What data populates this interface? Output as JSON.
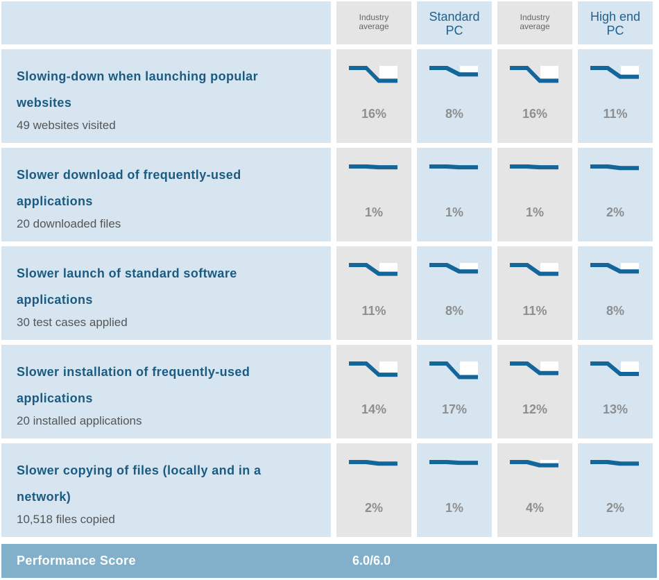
{
  "header": {
    "columns": [
      {
        "label": "Industry average",
        "style": "small"
      },
      {
        "label": "Standard PC",
        "style": "big"
      },
      {
        "label": "Industry average",
        "style": "small"
      },
      {
        "label": "High end PC",
        "style": "big"
      }
    ]
  },
  "rows": [
    {
      "title": "Slowing-down when launching popular websites",
      "subtitle": "49 websites visited",
      "values": [
        "16%",
        "8%",
        "16%",
        "11%"
      ]
    },
    {
      "title": "Slower download of frequently-used applications",
      "subtitle": "20 downloaded files",
      "values": [
        "1%",
        "1%",
        "1%",
        "2%"
      ]
    },
    {
      "title": "Slower launch of standard software applications",
      "subtitle": "30 test cases applied",
      "values": [
        "11%",
        "8%",
        "11%",
        "8%"
      ]
    },
    {
      "title": "Slower installation of frequently-used applications",
      "subtitle": "20 installed applications",
      "values": [
        "14%",
        "17%",
        "12%",
        "13%"
      ]
    },
    {
      "title": "Slower copying of files (locally and in a network)",
      "subtitle": "10,518 files copied",
      "values": [
        "2%",
        "1%",
        "4%",
        "2%"
      ]
    }
  ],
  "footer": {
    "label": "Performance Score",
    "value": "6.0/6.0"
  },
  "icons": {
    "slowdown": "slowdown-indicator-icon"
  },
  "colors": {
    "accent_blue": "#13659a",
    "title_blue": "#1b5b82",
    "cell_blue": "#d6e5ef",
    "cell_gray": "#e5e5e5",
    "footer_bar": "#82afc9",
    "percent_gray": "#8e8e8e"
  }
}
